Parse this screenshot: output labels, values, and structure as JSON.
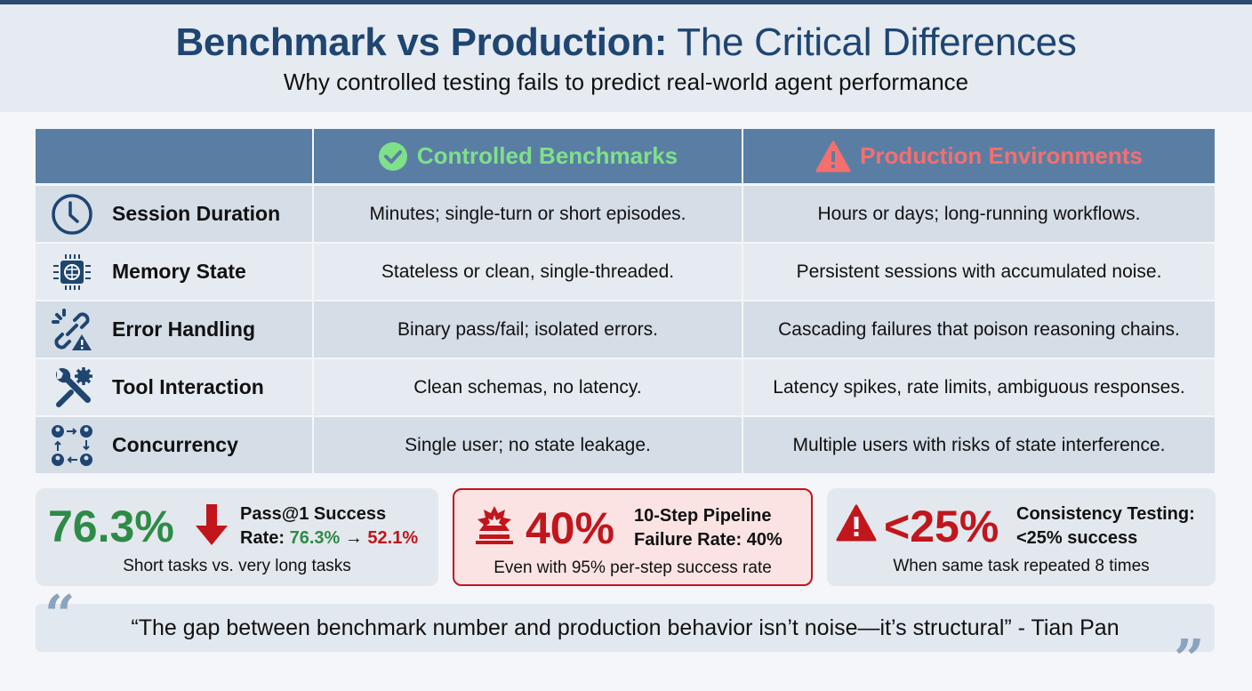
{
  "header": {
    "title_bold": "Benchmark vs Production:",
    "title_rest": "The Critical Differences",
    "subtitle": "Why controlled testing fails to predict real-world agent performance"
  },
  "table": {
    "columns": [
      {
        "label": "",
        "icon": "check-circle-icon"
      },
      {
        "label": "Controlled Benchmarks",
        "icon": "check-circle-icon",
        "color": "#7fe08a"
      },
      {
        "label": "Production Environments",
        "icon": "warning-triangle-icon",
        "color": "#f46f6f"
      }
    ],
    "rows": [
      {
        "label": "Session Duration",
        "icon": "clock-icon",
        "benchmark": "Minutes; single-turn or short episodes.",
        "production": "Hours or days; long-running workflows."
      },
      {
        "label": "Memory State",
        "icon": "brain-chip-icon",
        "benchmark": "Stateless or clean, single-threaded.",
        "production": "Persistent sessions with accumulated noise."
      },
      {
        "label": "Error Handling",
        "icon": "broken-link-warning-icon",
        "benchmark": "Binary pass/fail; isolated errors.",
        "production": "Cascading failures that poison reasoning chains."
      },
      {
        "label": "Tool Interaction",
        "icon": "wrench-gear-icon",
        "benchmark": "Clean schemas, no latency.",
        "production": "Latency spikes, rate limits, ambiguous responses."
      },
      {
        "label": "Concurrency",
        "icon": "users-cycle-icon",
        "benchmark": "Single user; no state leakage.",
        "production": "Multiple users with risks of state interference."
      }
    ]
  },
  "stats": [
    {
      "big": "76.3%",
      "title_line1": "Pass@1 Success",
      "title_prefix": "Rate:",
      "from": "76.3%",
      "arrow": "→",
      "to": "52.1%",
      "sub": "Short tasks vs. very long tasks",
      "icon": "down-arrow-icon"
    },
    {
      "big": "40%",
      "title_line1": "10-Step Pipeline",
      "title_line2": "Failure Rate: 40%",
      "sub": "Even with 95% per-step success rate",
      "icon": "alarm-siren-icon"
    },
    {
      "big": "<25%",
      "title_line1": "Consistency Testing:",
      "title_line2": "<25% success",
      "sub": "When same task repeated 8 times",
      "icon": "warning-triangle-icon"
    }
  ],
  "quote": {
    "text": "“The gap between benchmark number and production behavior isn’t noise—it’s structural” - Tian Pan",
    "open_mark": "“",
    "close_mark": "”"
  },
  "colors": {
    "navy": "#1f4571",
    "header_blue": "#5a7ea3",
    "green": "#2e8b47",
    "red": "#c0161c"
  }
}
